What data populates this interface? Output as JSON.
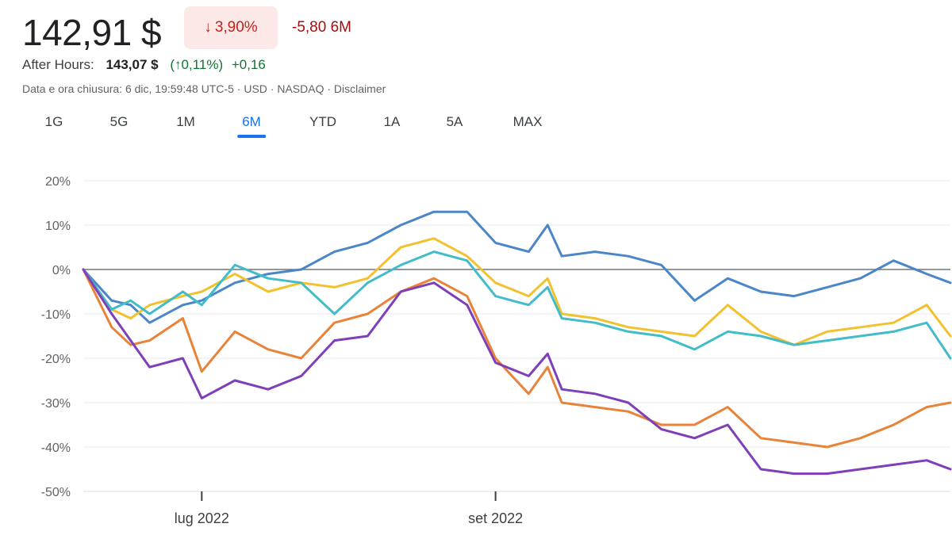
{
  "quote": {
    "price": "142,91 $",
    "change_arrow": "↓",
    "change_pct": "3,90%",
    "change_abs": "-5,80 6M",
    "after_hours_label": "After Hours:",
    "after_hours_price": "143,07 $",
    "after_hours_pct": "(↑0,11%)",
    "after_hours_abs": "+0,16",
    "meta": "Data e ora chiusura: 6 dic, 19:59:48 UTC-5 · USD · NASDAQ · Disclaimer"
  },
  "tabs": [
    {
      "label": "1G",
      "active": false
    },
    {
      "label": "5G",
      "active": false
    },
    {
      "label": "1M",
      "active": false
    },
    {
      "label": "6M",
      "active": true
    },
    {
      "label": "YTD",
      "active": false
    },
    {
      "label": "1A",
      "active": false
    },
    {
      "label": "5A",
      "active": false
    },
    {
      "label": "MAX",
      "active": false
    }
  ],
  "chart_data": {
    "type": "line",
    "ylim": [
      -50,
      20
    ],
    "yticks": [
      20,
      10,
      0,
      -10,
      -20,
      -30,
      -40,
      -50
    ],
    "ytick_labels": [
      "20%",
      "10%",
      "0%",
      "-10%",
      "-20%",
      "-30%",
      "-40%",
      "-50%"
    ],
    "xlim": [
      "2022-06-06",
      "2022-12-06"
    ],
    "xticks": [
      {
        "date": "2022-07-01",
        "label": "lug 2022"
      },
      {
        "date": "2022-09-01",
        "label": "set 2022"
      }
    ],
    "baseline": 0,
    "grid": true,
    "series": [
      {
        "color": "#4a86c8",
        "points": [
          [
            "2022-06-06",
            0
          ],
          [
            "2022-06-12",
            -7
          ],
          [
            "2022-06-16",
            -8
          ],
          [
            "2022-06-20",
            -12
          ],
          [
            "2022-06-27",
            -8
          ],
          [
            "2022-07-01",
            -7
          ],
          [
            "2022-07-08",
            -3
          ],
          [
            "2022-07-15",
            -1
          ],
          [
            "2022-07-22",
            0
          ],
          [
            "2022-07-29",
            4
          ],
          [
            "2022-08-05",
            6
          ],
          [
            "2022-08-12",
            10
          ],
          [
            "2022-08-19",
            13
          ],
          [
            "2022-08-26",
            13
          ],
          [
            "2022-09-01",
            6
          ],
          [
            "2022-09-08",
            4
          ],
          [
            "2022-09-12",
            10
          ],
          [
            "2022-09-15",
            3
          ],
          [
            "2022-09-22",
            4
          ],
          [
            "2022-09-29",
            3
          ],
          [
            "2022-10-06",
            1
          ],
          [
            "2022-10-13",
            -7
          ],
          [
            "2022-10-20",
            -2
          ],
          [
            "2022-10-27",
            -5
          ],
          [
            "2022-11-03",
            -6
          ],
          [
            "2022-11-10",
            -4
          ],
          [
            "2022-11-17",
            -2
          ],
          [
            "2022-11-24",
            2
          ],
          [
            "2022-12-01",
            -1
          ],
          [
            "2022-12-06",
            -3
          ]
        ]
      },
      {
        "color": "#f2c12e",
        "points": [
          [
            "2022-06-06",
            0
          ],
          [
            "2022-06-12",
            -9
          ],
          [
            "2022-06-16",
            -11
          ],
          [
            "2022-06-20",
            -8
          ],
          [
            "2022-06-27",
            -6
          ],
          [
            "2022-07-01",
            -5
          ],
          [
            "2022-07-08",
            -1
          ],
          [
            "2022-07-15",
            -5
          ],
          [
            "2022-07-22",
            -3
          ],
          [
            "2022-07-29",
            -4
          ],
          [
            "2022-08-05",
            -2
          ],
          [
            "2022-08-12",
            5
          ],
          [
            "2022-08-19",
            7
          ],
          [
            "2022-08-26",
            3
          ],
          [
            "2022-09-01",
            -3
          ],
          [
            "2022-09-08",
            -6
          ],
          [
            "2022-09-12",
            -2
          ],
          [
            "2022-09-15",
            -10
          ],
          [
            "2022-09-22",
            -11
          ],
          [
            "2022-09-29",
            -13
          ],
          [
            "2022-10-06",
            -14
          ],
          [
            "2022-10-13",
            -15
          ],
          [
            "2022-10-20",
            -8
          ],
          [
            "2022-10-27",
            -14
          ],
          [
            "2022-11-03",
            -17
          ],
          [
            "2022-11-10",
            -14
          ],
          [
            "2022-11-17",
            -13
          ],
          [
            "2022-11-24",
            -12
          ],
          [
            "2022-12-01",
            -8
          ],
          [
            "2022-12-06",
            -15
          ]
        ]
      },
      {
        "color": "#42bcc9",
        "points": [
          [
            "2022-06-06",
            0
          ],
          [
            "2022-06-12",
            -9
          ],
          [
            "2022-06-16",
            -7
          ],
          [
            "2022-06-20",
            -10
          ],
          [
            "2022-06-27",
            -5
          ],
          [
            "2022-07-01",
            -8
          ],
          [
            "2022-07-08",
            1
          ],
          [
            "2022-07-15",
            -2
          ],
          [
            "2022-07-22",
            -3
          ],
          [
            "2022-07-29",
            -10
          ],
          [
            "2022-08-05",
            -3
          ],
          [
            "2022-08-12",
            1
          ],
          [
            "2022-08-19",
            4
          ],
          [
            "2022-08-26",
            2
          ],
          [
            "2022-09-01",
            -6
          ],
          [
            "2022-09-08",
            -8
          ],
          [
            "2022-09-12",
            -4
          ],
          [
            "2022-09-15",
            -11
          ],
          [
            "2022-09-22",
            -12
          ],
          [
            "2022-09-29",
            -14
          ],
          [
            "2022-10-06",
            -15
          ],
          [
            "2022-10-13",
            -18
          ],
          [
            "2022-10-20",
            -14
          ],
          [
            "2022-10-27",
            -15
          ],
          [
            "2022-11-03",
            -17
          ],
          [
            "2022-11-10",
            -16
          ],
          [
            "2022-11-17",
            -15
          ],
          [
            "2022-11-24",
            -14
          ],
          [
            "2022-12-01",
            -12
          ],
          [
            "2022-12-06",
            -20
          ]
        ]
      },
      {
        "color": "#e8833a",
        "points": [
          [
            "2022-06-06",
            0
          ],
          [
            "2022-06-12",
            -13
          ],
          [
            "2022-06-16",
            -17
          ],
          [
            "2022-06-20",
            -16
          ],
          [
            "2022-06-27",
            -11
          ],
          [
            "2022-07-01",
            -23
          ],
          [
            "2022-07-08",
            -14
          ],
          [
            "2022-07-15",
            -18
          ],
          [
            "2022-07-22",
            -20
          ],
          [
            "2022-07-29",
            -12
          ],
          [
            "2022-08-05",
            -10
          ],
          [
            "2022-08-12",
            -5
          ],
          [
            "2022-08-19",
            -2
          ],
          [
            "2022-08-26",
            -6
          ],
          [
            "2022-09-01",
            -20
          ],
          [
            "2022-09-08",
            -28
          ],
          [
            "2022-09-12",
            -22
          ],
          [
            "2022-09-15",
            -30
          ],
          [
            "2022-09-22",
            -31
          ],
          [
            "2022-09-29",
            -32
          ],
          [
            "2022-10-06",
            -35
          ],
          [
            "2022-10-13",
            -35
          ],
          [
            "2022-10-20",
            -31
          ],
          [
            "2022-10-27",
            -38
          ],
          [
            "2022-11-03",
            -39
          ],
          [
            "2022-11-10",
            -40
          ],
          [
            "2022-11-17",
            -38
          ],
          [
            "2022-11-24",
            -35
          ],
          [
            "2022-12-01",
            -31
          ],
          [
            "2022-12-06",
            -30
          ]
        ]
      },
      {
        "color": "#7e3fb8",
        "points": [
          [
            "2022-06-06",
            0
          ],
          [
            "2022-06-12",
            -10
          ],
          [
            "2022-06-16",
            -16
          ],
          [
            "2022-06-20",
            -22
          ],
          [
            "2022-06-27",
            -20
          ],
          [
            "2022-07-01",
            -29
          ],
          [
            "2022-07-08",
            -25
          ],
          [
            "2022-07-15",
            -27
          ],
          [
            "2022-07-22",
            -24
          ],
          [
            "2022-07-29",
            -16
          ],
          [
            "2022-08-05",
            -15
          ],
          [
            "2022-08-12",
            -5
          ],
          [
            "2022-08-19",
            -3
          ],
          [
            "2022-08-26",
            -8
          ],
          [
            "2022-09-01",
            -21
          ],
          [
            "2022-09-08",
            -24
          ],
          [
            "2022-09-12",
            -19
          ],
          [
            "2022-09-15",
            -27
          ],
          [
            "2022-09-22",
            -28
          ],
          [
            "2022-09-29",
            -30
          ],
          [
            "2022-10-06",
            -36
          ],
          [
            "2022-10-13",
            -38
          ],
          [
            "2022-10-20",
            -35
          ],
          [
            "2022-10-27",
            -45
          ],
          [
            "2022-11-03",
            -46
          ],
          [
            "2022-11-10",
            -46
          ],
          [
            "2022-11-17",
            -45
          ],
          [
            "2022-11-24",
            -44
          ],
          [
            "2022-12-01",
            -43
          ],
          [
            "2022-12-06",
            -45
          ]
        ]
      }
    ]
  }
}
